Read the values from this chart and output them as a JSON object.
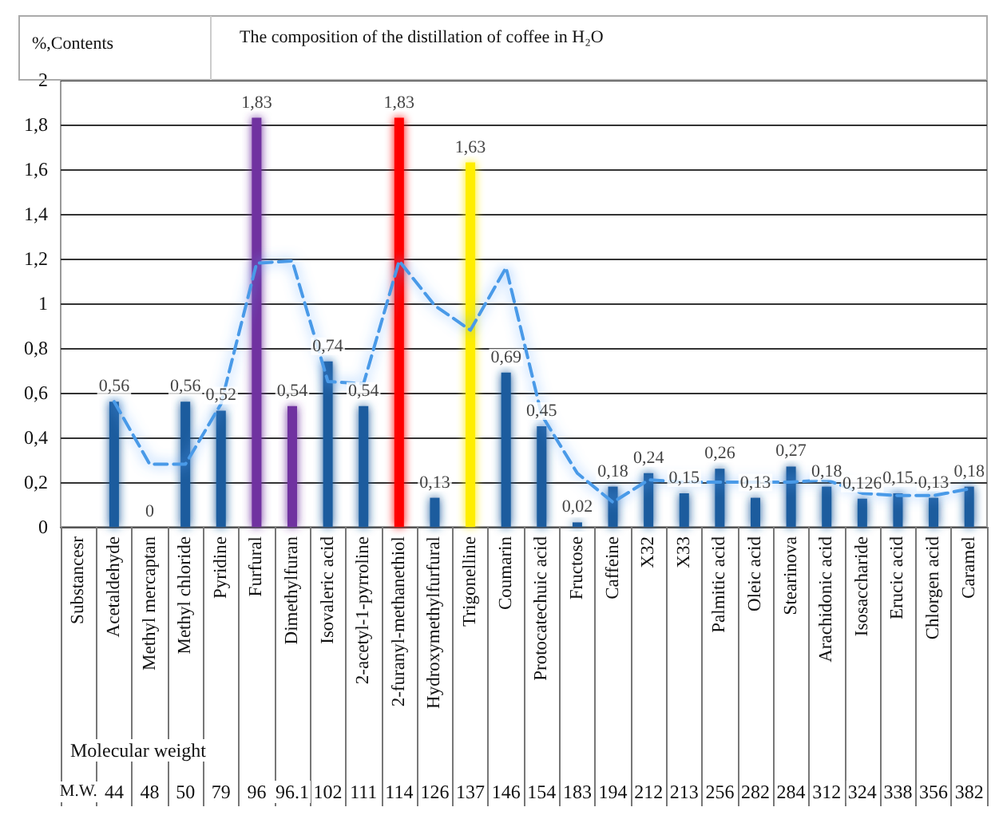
{
  "chart_data": {
    "type": "bar",
    "title": "The composition of the distillation of coffee in H₂O",
    "ylabel": "%,Contents",
    "categories": [
      "Substancesr",
      "Acetaldehyde",
      "Methyl mercaptan",
      "Methyl chloride",
      "Pyridine",
      "Furfural",
      "Dimethylfuran",
      "Isovaleric acid",
      "2-acetyl-1-pyrroline",
      "2-furanyl-methanethiol",
      "Hydroxymethylfurfural",
      "Trigonelline",
      "Coumarin",
      "Protocatechuic acid",
      "Fructose",
      "Caffeine",
      "X32",
      "X33",
      "Palmitic acid",
      "Oleic acid",
      "Stearinova",
      "Arachidonic acid",
      "Isosaccharide",
      "Erucic acid",
      "Chlorgen acid",
      "Caramel"
    ],
    "series": [
      {
        "colors": [
          "#1a5c9e",
          "#1a5c9e",
          "#1a5c9e",
          "#1a5c9e",
          "#1a5c9e",
          "#7030a0",
          "#7030a0",
          "#1a5c9e",
          "#1a5c9e",
          "#ff0000",
          "#1a5c9e",
          "#ffee00",
          "#1a5c9e",
          "#1a5c9e",
          "#1a5c9e",
          "#1a5c9e",
          "#1a5c9e",
          "#1a5c9e",
          "#1a5c9e",
          "#1a5c9e",
          "#1a5c9e",
          "#1a5c9e",
          "#1a5c9e",
          "#1a5c9e",
          "#1a5c9e",
          "#1a5c9e"
        ],
        "values": [
          null,
          0.56,
          0,
          0.56,
          0.52,
          1.83,
          0.54,
          0.74,
          0.54,
          1.83,
          0.13,
          1.63,
          0.69,
          0.45,
          0.02,
          0.18,
          0.24,
          0.15,
          0.26,
          0.13,
          0.27,
          0.18,
          0.126,
          0.15,
          0.13,
          0.18
        ],
        "value_labels": [
          null,
          "0,56",
          "0",
          "0,56",
          "0,52",
          "1,83",
          "0,54",
          "0,74",
          "0,54",
          "1,83",
          "0,13",
          "1,63",
          "0,69",
          "0,45",
          "0,02",
          "0,18",
          "0,24",
          "0,15",
          "0,26",
          "0,13",
          "0,27",
          "0,18",
          "0,126",
          "0,15",
          "0,13",
          "0,18"
        ]
      },
      {
        "type": "line",
        "color": "#4a9ae8",
        "line_style": "dashed",
        "marker": "none",
        "values": [
          null,
          0.56,
          0.28,
          0.28,
          0.55,
          1.18,
          1.19,
          0.65,
          0.64,
          1.19,
          0.99,
          0.88,
          1.16,
          0.5,
          0.24,
          0.11,
          0.21,
          0.2,
          0.2,
          0.2,
          0.2,
          0.21,
          0.15,
          0.14,
          0.14,
          0.17
        ]
      }
    ],
    "ylim": [
      0,
      2
    ],
    "yticks": [
      0,
      {
        "value": 0.2,
        "label": "0,2"
      },
      {
        "value": 0.4,
        "label": "0,4"
      },
      {
        "value": 0.6,
        "label": "0,6"
      },
      {
        "value": 0.8,
        "label": "0,8"
      },
      1,
      {
        "value": 1.2,
        "label": "1,2"
      },
      {
        "value": 1.4,
        "label": "1,4"
      },
      {
        "value": 1.6,
        "label": "1,6"
      },
      {
        "value": 1.8,
        "label": "1,8"
      },
      2
    ],
    "grid": "y",
    "annotations": [
      "Molecular weight",
      "M.W.",
      "44",
      "48",
      "50",
      "79",
      "96",
      "96.1",
      "102",
      "111",
      "114",
      "126",
      "137",
      "146",
      "154",
      "183",
      "194",
      "212",
      "213",
      "256",
      "282",
      "284",
      "312",
      "324",
      "338",
      "356",
      "382"
    ]
  }
}
